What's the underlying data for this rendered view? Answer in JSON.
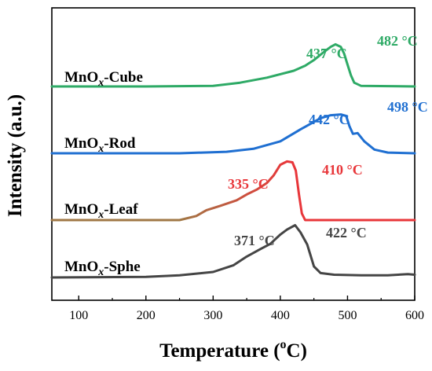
{
  "chart_data": {
    "type": "line",
    "title": "",
    "xlabel": "Temperature (°C)",
    "xlabel_main": "Temperature (",
    "xlabel_sup": "o",
    "xlabel_end": "C)",
    "ylabel": "Intensity (a.u.)",
    "xlim": [
      60,
      600
    ],
    "xticks": [
      100,
      200,
      300,
      400,
      500,
      600
    ],
    "yticks_shown": false,
    "grid": false,
    "legend": "none",
    "series": [
      {
        "key": "cube",
        "label_prefix": "MnO",
        "label_sub": "x",
        "label_suffix": "-Cube",
        "color": "#2eaa66",
        "baseline": 0.0,
        "points": [
          [
            60,
            0
          ],
          [
            200,
            0
          ],
          [
            300,
            0.01
          ],
          [
            340,
            0.06
          ],
          [
            380,
            0.14
          ],
          [
            420,
            0.25
          ],
          [
            437,
            0.33
          ],
          [
            450,
            0.42
          ],
          [
            465,
            0.55
          ],
          [
            475,
            0.63
          ],
          [
            482,
            0.67
          ],
          [
            490,
            0.63
          ],
          [
            495,
            0.52
          ],
          [
            500,
            0.35
          ],
          [
            505,
            0.18
          ],
          [
            510,
            0.06
          ],
          [
            520,
            0.01
          ],
          [
            600,
            0
          ]
        ],
        "annotations": [
          {
            "text": "437 °C",
            "x": 437
          },
          {
            "text": "482 °C",
            "x": 482
          }
        ]
      },
      {
        "key": "rod",
        "label_prefix": "MnO",
        "label_sub": "x",
        "label_suffix": "-Rod",
        "color": "#1f6fd1",
        "baseline": 0.0,
        "points": [
          [
            60,
            0
          ],
          [
            250,
            0
          ],
          [
            320,
            0.02
          ],
          [
            360,
            0.06
          ],
          [
            400,
            0.16
          ],
          [
            430,
            0.32
          ],
          [
            442,
            0.38
          ],
          [
            460,
            0.47
          ],
          [
            475,
            0.51
          ],
          [
            490,
            0.52
          ],
          [
            498,
            0.5
          ],
          [
            503,
            0.36
          ],
          [
            508,
            0.26
          ],
          [
            515,
            0.27
          ],
          [
            525,
            0.16
          ],
          [
            540,
            0.05
          ],
          [
            560,
            0.01
          ],
          [
            600,
            0
          ]
        ],
        "annotations": [
          {
            "text": "442 °C",
            "x": 442
          },
          {
            "text": "498 °C",
            "x": 498
          }
        ]
      },
      {
        "key": "leaf",
        "label_prefix": "MnO",
        "label_sub": "x",
        "label_suffix": "-Leaf",
        "color_start": "#a07845",
        "color_end": "#e8363a",
        "color": "#e8363a",
        "baseline": 0.0,
        "points": [
          [
            60,
            0
          ],
          [
            250,
            0
          ],
          [
            275,
            0.05
          ],
          [
            290,
            0.12
          ],
          [
            310,
            0.17
          ],
          [
            335,
            0.24
          ],
          [
            350,
            0.31
          ],
          [
            365,
            0.37
          ],
          [
            380,
            0.45
          ],
          [
            390,
            0.54
          ],
          [
            400,
            0.67
          ],
          [
            410,
            0.71
          ],
          [
            418,
            0.7
          ],
          [
            423,
            0.6
          ],
          [
            428,
            0.3
          ],
          [
            432,
            0.08
          ],
          [
            437,
            0
          ],
          [
            600,
            0
          ]
        ],
        "annotations": [
          {
            "text": "335 °C",
            "x": 335
          },
          {
            "text": "410 °C",
            "x": 410
          }
        ]
      },
      {
        "key": "sphe",
        "label_prefix": "MnO",
        "label_sub": "x",
        "label_suffix": "-Sphe",
        "color": "#454545",
        "baseline": 0.0,
        "points": [
          [
            60,
            0
          ],
          [
            200,
            0.01
          ],
          [
            250,
            0.04
          ],
          [
            300,
            0.1
          ],
          [
            330,
            0.22
          ],
          [
            350,
            0.38
          ],
          [
            371,
            0.52
          ],
          [
            385,
            0.61
          ],
          [
            400,
            0.78
          ],
          [
            410,
            0.87
          ],
          [
            422,
            0.95
          ],
          [
            430,
            0.82
          ],
          [
            440,
            0.6
          ],
          [
            445,
            0.4
          ],
          [
            450,
            0.2
          ],
          [
            460,
            0.08
          ],
          [
            480,
            0.05
          ],
          [
            520,
            0.04
          ],
          [
            560,
            0.04
          ],
          [
            590,
            0.06
          ],
          [
            600,
            0.05
          ]
        ],
        "annotations": [
          {
            "text": "371 °C",
            "x": 371
          },
          {
            "text": "422 °C",
            "x": 422
          }
        ]
      }
    ]
  }
}
